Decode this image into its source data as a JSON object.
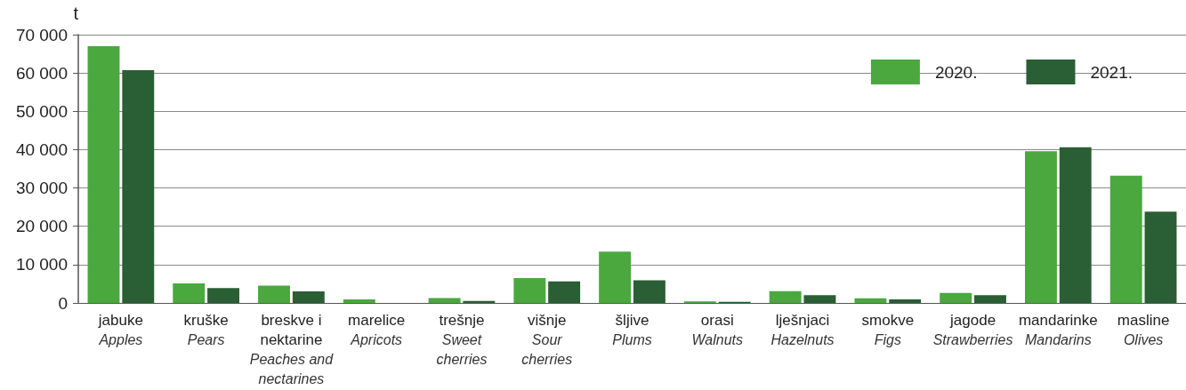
{
  "chart_data": {
    "type": "bar",
    "ylabel": "t",
    "categories": [
      "jabuke\nApples",
      "kruške\nPears",
      "breskve i nektarine\nPeaches and nectarines",
      "marelice\nApricots",
      "trešnje\nSweet cherries",
      "višnje\nSour cherries",
      "šljive\nPlums",
      "orasi\nWalnuts",
      "lješnjaci\nHazelnuts",
      "smokve\nFigs",
      "jagode\nStrawberries",
      "mandarinke\nMandarins",
      "masline\nOlives"
    ],
    "series": [
      {
        "name": "2020.",
        "color": "#4aa83f",
        "values": [
          67000,
          5100,
          4500,
          900,
          1300,
          6500,
          13400,
          400,
          3100,
          1200,
          2600,
          39600,
          33200
        ]
      },
      {
        "name": "2021.",
        "color": "#2a5e34",
        "values": [
          60700,
          3900,
          3000,
          0,
          500,
          5600,
          5900,
          300,
          2000,
          900,
          2000,
          40600,
          23800
        ]
      }
    ],
    "ylim": [
      0,
      70000
    ],
    "yticks": [
      {
        "value": 0,
        "label": "0"
      },
      {
        "value": 10000,
        "label": "10 000"
      },
      {
        "value": 20000,
        "label": "20 000"
      },
      {
        "value": 30000,
        "label": "30 000"
      },
      {
        "value": 40000,
        "label": "40 000"
      },
      {
        "value": 50000,
        "label": "50 000"
      },
      {
        "value": 60000,
        "label": "60 000"
      },
      {
        "value": 70000,
        "label": "70 000"
      }
    ],
    "grid": true,
    "legend": "top right"
  }
}
